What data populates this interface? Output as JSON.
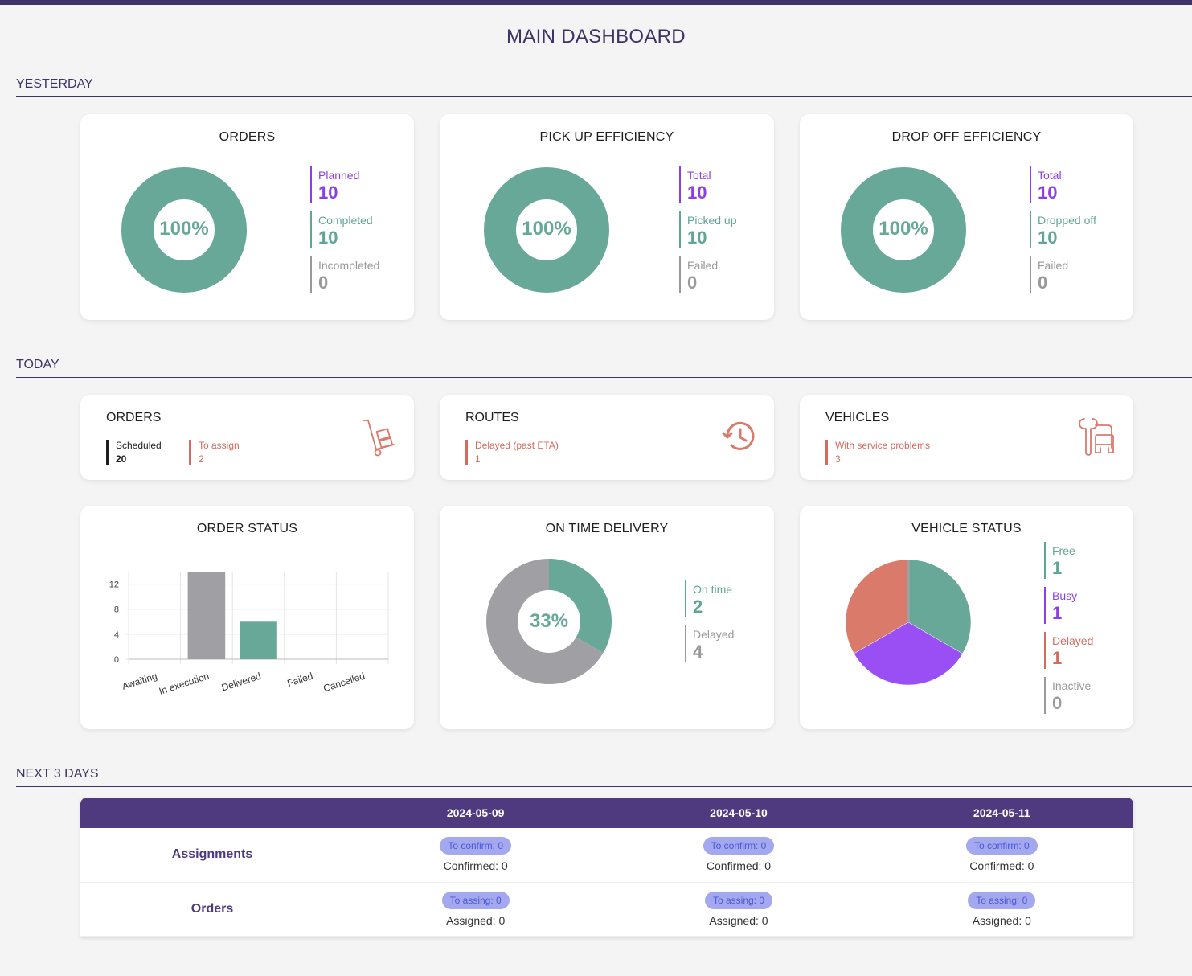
{
  "page_title": "MAIN DASHBOARD",
  "sections": {
    "yesterday": "YESTERDAY",
    "today": "TODAY",
    "next": "NEXT 3 DAYS"
  },
  "colors": {
    "primary": "#3f3266",
    "green": "#67a898",
    "purple": "#8c3fe8",
    "red": "#d97a6b",
    "gray": "#a0a0a4"
  },
  "yesterday": {
    "orders": {
      "title": "ORDERS",
      "percent": "100%",
      "legend": [
        {
          "label": "Planned",
          "value": "10"
        },
        {
          "label": "Completed",
          "value": "10"
        },
        {
          "label": "Incompleted",
          "value": "0"
        }
      ]
    },
    "pickup": {
      "title": "PICK UP EFFICIENCY",
      "percent": "100%",
      "legend": [
        {
          "label": "Total",
          "value": "10"
        },
        {
          "label": "Picked up",
          "value": "10"
        },
        {
          "label": "Failed",
          "value": "0"
        }
      ]
    },
    "dropoff": {
      "title": "DROP OFF EFFICIENCY",
      "percent": "100%",
      "legend": [
        {
          "label": "Total",
          "value": "10"
        },
        {
          "label": "Dropped off",
          "value": "10"
        },
        {
          "label": "Failed",
          "value": "0"
        }
      ]
    }
  },
  "today": {
    "orders": {
      "title": "ORDERS",
      "icon": "hand-truck-icon",
      "items": [
        {
          "label": "Scheduled",
          "value": "20"
        },
        {
          "label": "To assign",
          "value": "2"
        }
      ]
    },
    "routes": {
      "title": "ROUTES",
      "icon": "history-clock-icon",
      "items": [
        {
          "label": "Delayed (past ETA)",
          "value": "1"
        }
      ]
    },
    "vehicles": {
      "title": "VEHICLES",
      "icon": "vehicle-repair-icon",
      "items": [
        {
          "label": "With service problems",
          "value": "3"
        }
      ]
    },
    "order_status": {
      "title": "ORDER STATUS"
    },
    "on_time": {
      "title": "ON TIME DELIVERY",
      "percent": "33%",
      "legend": [
        {
          "label": "On time",
          "value": "2"
        },
        {
          "label": "Delayed",
          "value": "4"
        }
      ]
    },
    "vehicle_status": {
      "title": "VEHICLE STATUS",
      "legend": [
        {
          "label": "Free",
          "value": "1"
        },
        {
          "label": "Busy",
          "value": "1"
        },
        {
          "label": "Delayed",
          "value": "1"
        },
        {
          "label": "Inactive",
          "value": "0"
        }
      ]
    }
  },
  "chart_data": [
    {
      "type": "bar",
      "title": "ORDER STATUS",
      "categories": [
        "Awaiting",
        "In execution",
        "Delivered",
        "Failed",
        "Cancelled"
      ],
      "values": [
        0,
        14,
        6,
        0,
        0
      ],
      "ylim": [
        0,
        14
      ],
      "yticks": [
        0,
        4,
        8,
        12
      ],
      "colors": [
        "#a0a0a4",
        "#a0a0a4",
        "#67a898",
        "#a0a0a4",
        "#a0a0a4"
      ],
      "grid": true
    },
    {
      "type": "pie",
      "title": "ON TIME DELIVERY",
      "categories": [
        "On time",
        "Delayed"
      ],
      "values": [
        2,
        4
      ],
      "colors": [
        "#67a898",
        "#a0a0a4"
      ]
    },
    {
      "type": "pie",
      "title": "VEHICLE STATUS",
      "categories": [
        "Free",
        "Busy",
        "Delayed",
        "Inactive"
      ],
      "values": [
        1,
        1,
        1,
        0
      ],
      "colors": [
        "#67a898",
        "#9a4ff5",
        "#d97a6b",
        "#a0a0a4"
      ]
    }
  ],
  "next_days": {
    "dates": [
      "2024-05-09",
      "2024-05-10",
      "2024-05-11"
    ],
    "rows": [
      {
        "label": "Assignments",
        "cells": [
          {
            "pill": "To confirm: 0",
            "text": "Confirmed: 0"
          },
          {
            "pill": "To confirm: 0",
            "text": "Confirmed: 0"
          },
          {
            "pill": "To confirm: 0",
            "text": "Confirmed: 0"
          }
        ]
      },
      {
        "label": "Orders",
        "cells": [
          {
            "pill": "To assing: 0",
            "text": "Assigned: 0"
          },
          {
            "pill": "To assing: 0",
            "text": "Assigned: 0"
          },
          {
            "pill": "To assing: 0",
            "text": "Assigned: 0"
          }
        ]
      }
    ]
  }
}
